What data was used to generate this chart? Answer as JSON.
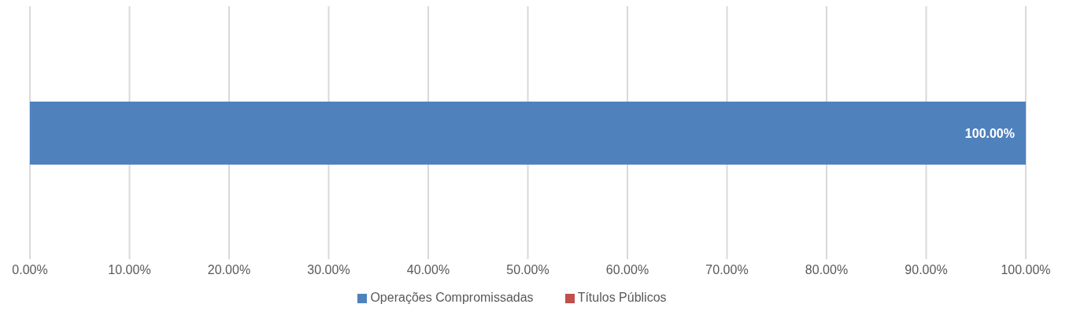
{
  "chart_data": {
    "type": "bar",
    "orientation": "horizontal",
    "stacked": true,
    "categories": [
      null
    ],
    "series": [
      {
        "name": "Títulos Públicos",
        "color": "#c0504d",
        "values": [
          0
        ],
        "value_labels": [
          null
        ]
      },
      {
        "name": "Operações Compromissadas",
        "color": "#4f81bd",
        "values": [
          100
        ],
        "value_labels": [
          "100.00%"
        ]
      }
    ],
    "xlim": [
      0,
      100
    ],
    "xticks": [
      {
        "value": 0,
        "label": "0.00%"
      },
      {
        "value": 10,
        "label": "10.00%"
      },
      {
        "value": 20,
        "label": "20.00%"
      },
      {
        "value": 30,
        "label": "30.00%"
      },
      {
        "value": 40,
        "label": "40.00%"
      },
      {
        "value": 50,
        "label": "50.00%"
      },
      {
        "value": 60,
        "label": "60.00%"
      },
      {
        "value": 70,
        "label": "70.00%"
      },
      {
        "value": 80,
        "label": "80.00%"
      },
      {
        "value": 90,
        "label": "90.00%"
      },
      {
        "value": 100,
        "label": "100.00%"
      }
    ],
    "grid": "x",
    "legend": "bottom"
  }
}
